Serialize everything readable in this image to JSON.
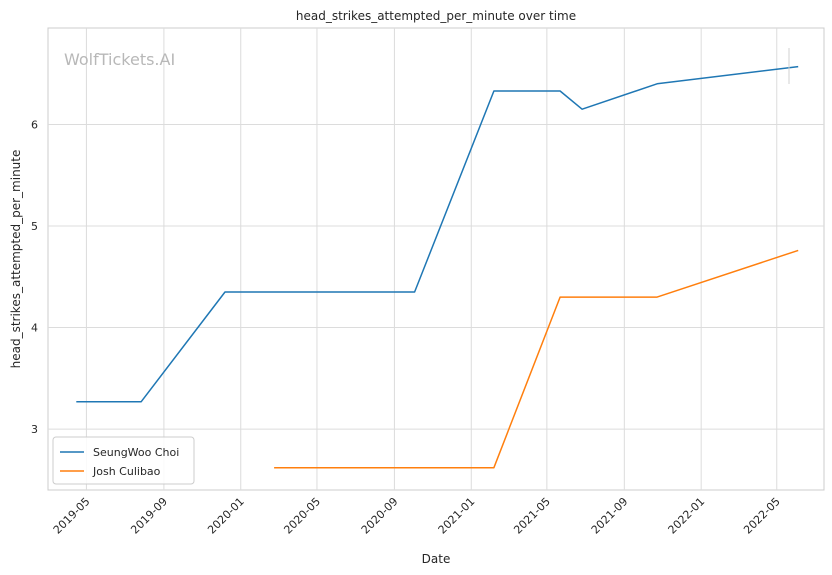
{
  "chart_data": {
    "type": "line",
    "title": "head_strikes_attempted_per_minute over time",
    "xlabel": "Date",
    "ylabel": "head_strikes_attempted_per_minute",
    "watermark": "WolfTickets.AI",
    "x_ticks": [
      "2019-05",
      "2019-09",
      "2020-01",
      "2020-05",
      "2020-09",
      "2021-01",
      "2021-05",
      "2021-09",
      "2022-01",
      "2022-05"
    ],
    "y_ticks": [
      3,
      4,
      5,
      6
    ],
    "xlim": [
      "2019-03-01",
      "2022-07-15"
    ],
    "ylim": [
      2.4,
      6.95
    ],
    "grid": true,
    "legend_position": "lower-left",
    "series": [
      {
        "name": "SeungWoo Choi",
        "color": "#1f77b4",
        "points": [
          {
            "x": "2019-04-15",
            "y": 3.27
          },
          {
            "x": "2019-07-27",
            "y": 3.27
          },
          {
            "x": "2019-12-07",
            "y": 4.35
          },
          {
            "x": "2020-10-03",
            "y": 4.35
          },
          {
            "x": "2021-02-06",
            "y": 6.33
          },
          {
            "x": "2021-05-22",
            "y": 6.33
          },
          {
            "x": "2021-06-26",
            "y": 6.15
          },
          {
            "x": "2021-10-23",
            "y": 6.4
          },
          {
            "x": "2022-06-04",
            "y": 6.57
          }
        ]
      },
      {
        "name": "Josh Culibao",
        "color": "#ff7f0e",
        "points": [
          {
            "x": "2020-02-23",
            "y": 2.62
          },
          {
            "x": "2021-02-06",
            "y": 2.62
          },
          {
            "x": "2021-05-22",
            "y": 4.3
          },
          {
            "x": "2021-10-23",
            "y": 4.3
          },
          {
            "x": "2022-06-04",
            "y": 4.76
          }
        ]
      }
    ]
  }
}
